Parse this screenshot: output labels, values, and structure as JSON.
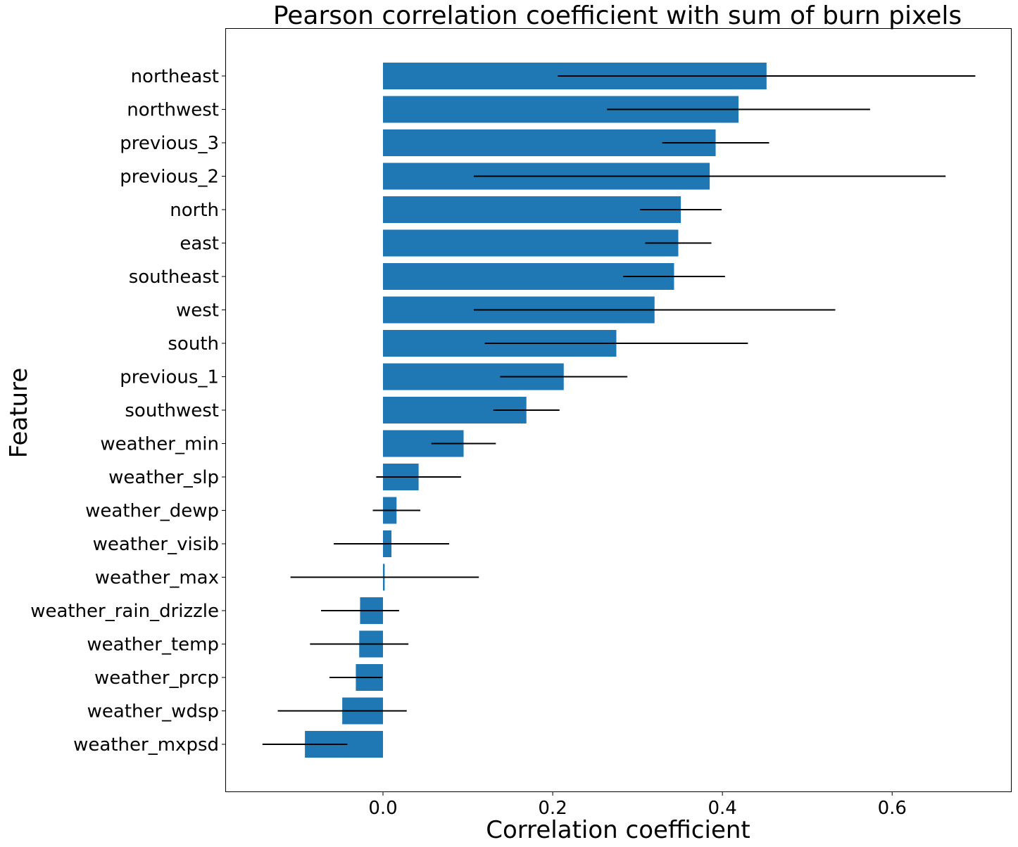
{
  "chart_data": {
    "type": "bar",
    "orientation": "horizontal",
    "title": "Pearson correlation coefficient with sum of burn pixels",
    "xlabel": "Correlation coefficient",
    "ylabel": "Feature",
    "xlim": [
      -0.185,
      0.74
    ],
    "xticks": [
      0.0,
      0.2,
      0.4,
      0.6
    ],
    "xtick_labels": [
      "0.0",
      "0.2",
      "0.4",
      "0.6"
    ],
    "grid": false,
    "legend": "none",
    "bar_color": "#1f77b4",
    "errorbar_color": "#000000",
    "categories": [
      "northeast",
      "northwest",
      "previous_3",
      "previous_2",
      "north",
      "east",
      "southeast",
      "west",
      "south",
      "previous_1",
      "southwest",
      "weather_min",
      "weather_slp",
      "weather_dewp",
      "weather_visib",
      "weather_max",
      "weather_rain_drizzle",
      "weather_temp",
      "weather_prcp",
      "weather_wdsp",
      "weather_mxpsd"
    ],
    "values": [
      0.452,
      0.419,
      0.392,
      0.385,
      0.351,
      0.348,
      0.343,
      0.32,
      0.275,
      0.213,
      0.169,
      0.095,
      0.042,
      0.016,
      0.01,
      0.002,
      -0.027,
      -0.028,
      -0.032,
      -0.048,
      -0.092
    ],
    "errors": [
      0.246,
      0.155,
      0.063,
      0.278,
      0.048,
      0.039,
      0.06,
      0.213,
      0.155,
      0.075,
      0.039,
      0.038,
      0.05,
      0.028,
      0.068,
      0.111,
      0.046,
      0.058,
      0.031,
      0.076,
      0.05
    ]
  }
}
